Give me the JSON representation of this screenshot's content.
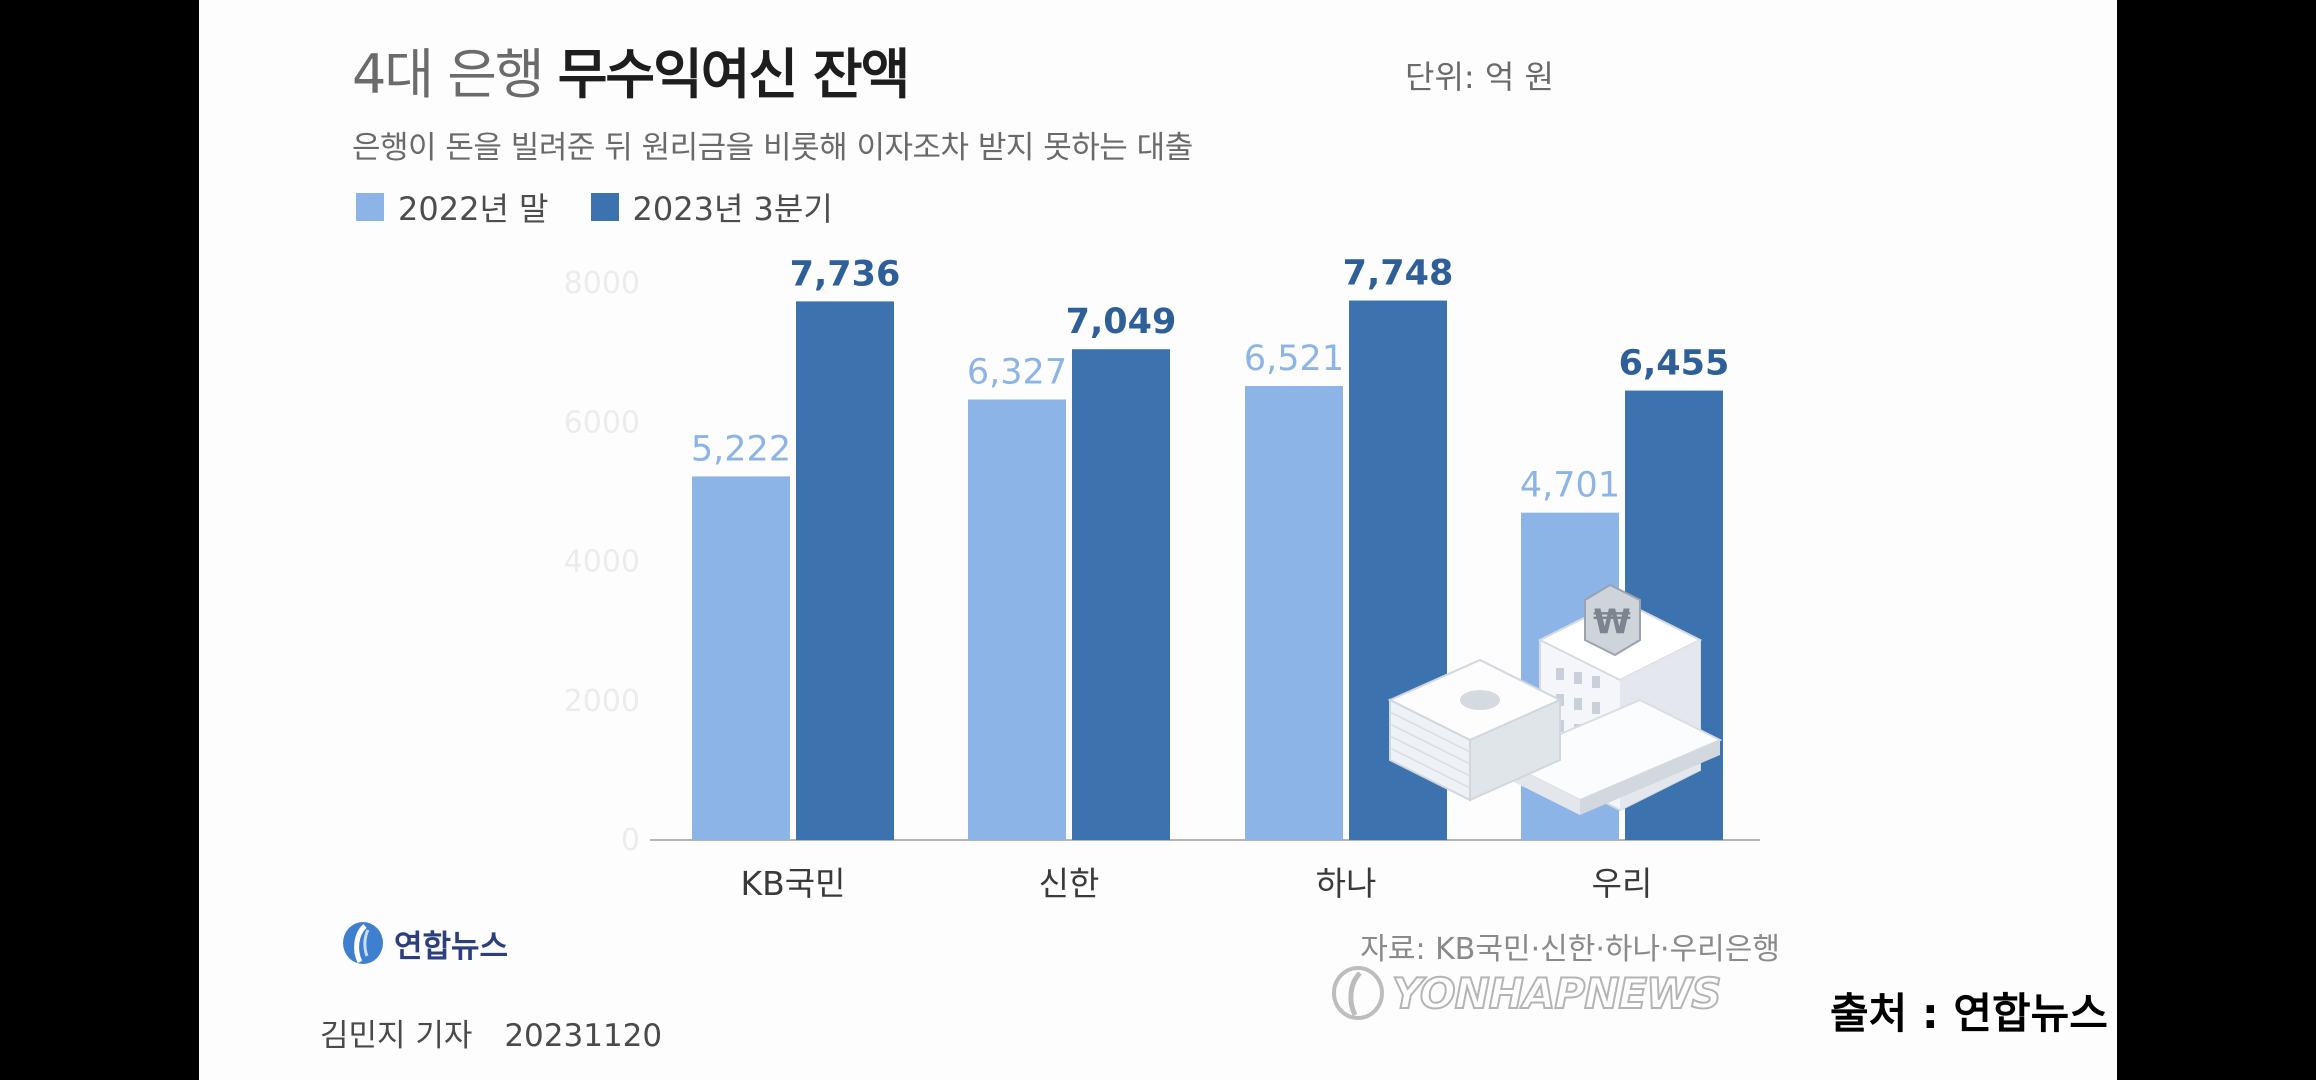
{
  "title": {
    "light": "4대 은행",
    "bold": "무수익여신 잔액"
  },
  "unit": "단위: 억 원",
  "subtitle": "은행이 돈을 빌려준 뒤 원리금을 비롯해 이자조차 받지 못하는 대출",
  "colors": {
    "series_2022": "#8db4e6",
    "series_2023": "#3c73ae",
    "label_2022": "#8db4e6",
    "label_2023": "#2f5f99"
  },
  "chart_data": {
    "type": "bar",
    "categories": [
      "KB국민",
      "신한",
      "하나",
      "우리"
    ],
    "series": [
      {
        "name": "2022년 말",
        "values": [
          5222,
          6327,
          6521,
          4701
        ],
        "labels": [
          "5,222",
          "6,327",
          "6,521",
          "4,701"
        ]
      },
      {
        "name": "2023년 3분기",
        "values": [
          7736,
          7049,
          7748,
          6455
        ],
        "labels": [
          "7,736",
          "7,049",
          "7,748",
          "6,455"
        ]
      }
    ],
    "y_ticks": [
      "0",
      "2000",
      "4000",
      "6000",
      "8000"
    ],
    "ylim": [
      0,
      8000
    ],
    "grid": false,
    "legend": "top-left"
  },
  "logo_text": "연합뉴스",
  "source": "자료: KB국민·신한·하나·우리은행",
  "reporter": {
    "name": "김민지 기자",
    "date": "20231120"
  },
  "watermark": "YONHAPNEWS",
  "origin": "출처 : 연합뉴스"
}
